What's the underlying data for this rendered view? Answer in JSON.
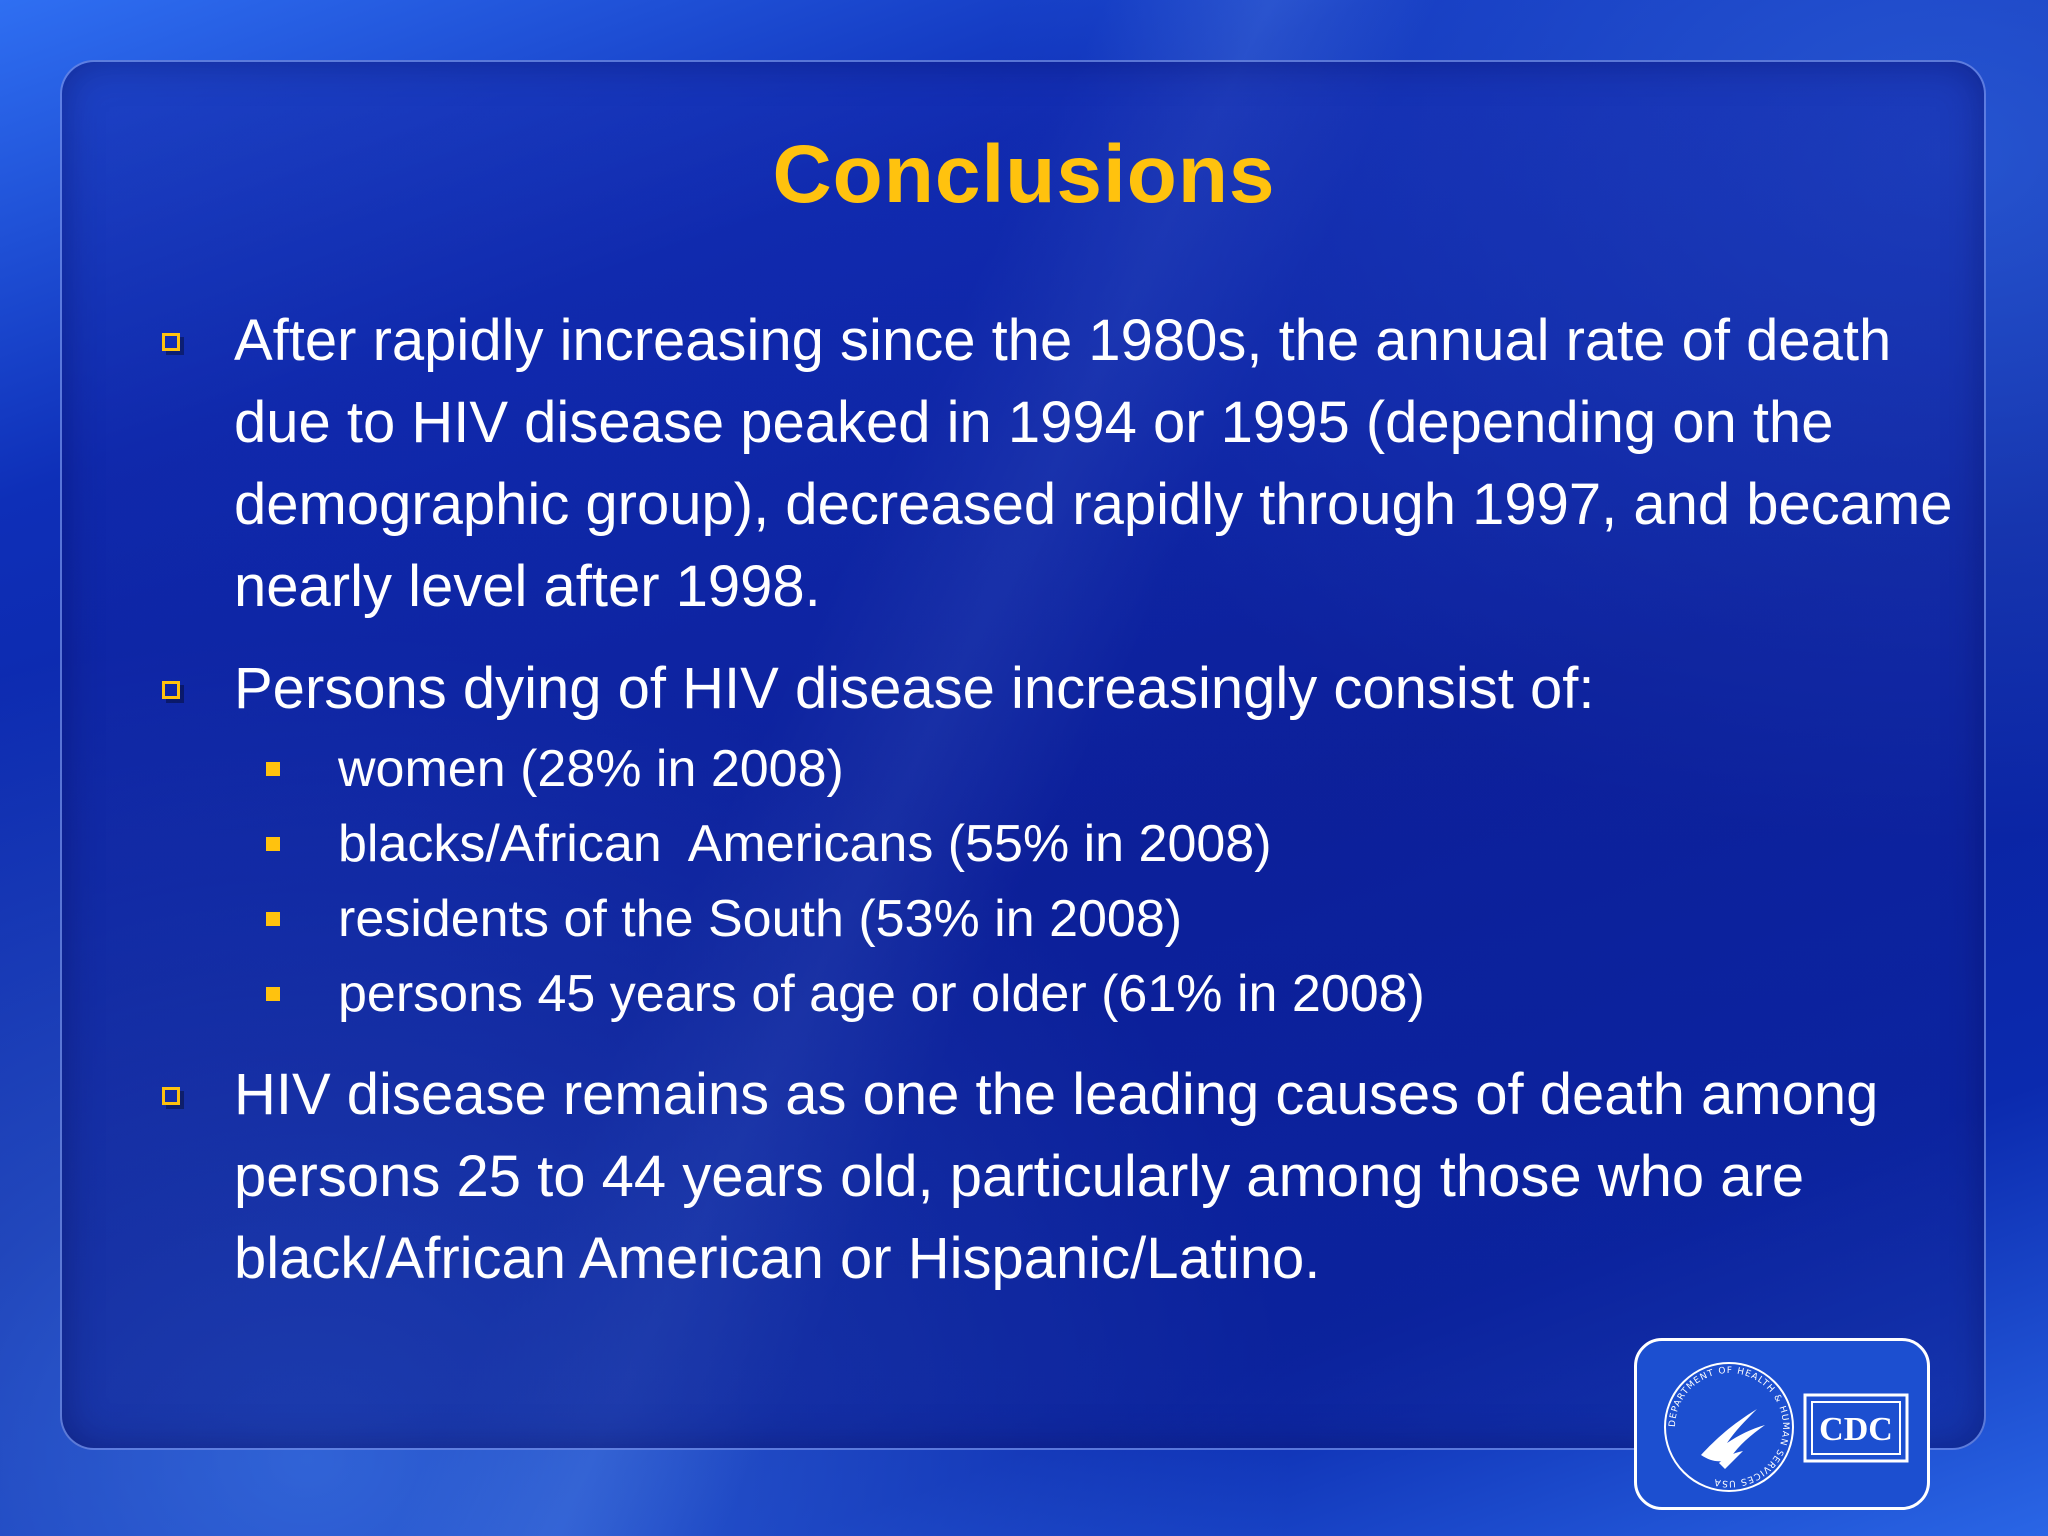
{
  "slide": {
    "title": "Conclusions",
    "bullets": [
      {
        "text": "After rapidly increasing since the 1980s, the annual rate of death due to HIV disease peaked in 1994 or 1995 (depending on the demographic group), decreased rapidly through 1997, and became nearly level after 1998."
      },
      {
        "text": "Persons dying of HIV disease increasingly consist of:",
        "sub_items": [
          "women (28% in 2008)",
          "blacks/African  Americans (55% in 2008)",
          "residents of the South (53% in 2008)",
          "persons 45 years of age or older (61% in 2008)"
        ]
      },
      {
        "text": "HIV disease remains as one the leading causes of death among persons 25 to 44 years old, particularly among those who are black/African American or Hispanic/Latino."
      }
    ]
  },
  "logos": {
    "hhs_seal_text": "DEPARTMENT OF HEALTH & HUMAN SERVICES USA",
    "cdc_text": "CDC"
  },
  "colors": {
    "title": "#ffc20e",
    "bullet_marker": "#ffc20e",
    "text": "#ffffff",
    "background": "#0b2aa6"
  },
  "icons": {
    "bullet_marker": "hollow-square-icon",
    "sub_marker": "filled-square-icon",
    "hhs": "hhs-eagle-seal-icon",
    "cdc": "cdc-logo-icon"
  }
}
